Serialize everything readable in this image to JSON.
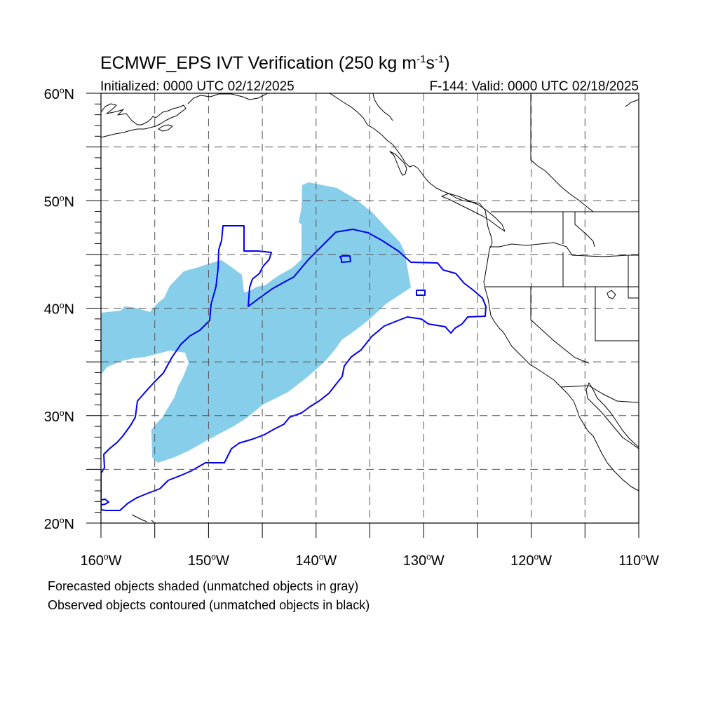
{
  "title": {
    "main": "ECMWF_EPS IVT Verification (250 kg m",
    "exp1": "-1",
    "mid": "s",
    "exp2": "-1",
    "end": ")"
  },
  "subtitle": {
    "left": "Initialized: 0000 UTC 02/12/2025",
    "right": "F-144: Valid: 0000 UTC 02/18/2025"
  },
  "map": {
    "projection": "cylindrical equidistant",
    "lon_range": [
      -160,
      -110
    ],
    "lat_range": [
      20,
      60
    ],
    "grid_lons": [
      -155,
      -150,
      -145,
      -140,
      -135,
      -130,
      -125,
      -120,
      -115
    ],
    "grid_lats": [
      25,
      30,
      35,
      40,
      45,
      50,
      55
    ],
    "lat_labels": [
      {
        "lat": 60,
        "deg": "60",
        "hemi": "N"
      },
      {
        "lat": 50,
        "deg": "50",
        "hemi": "N"
      },
      {
        "lat": 40,
        "deg": "40",
        "hemi": "N"
      },
      {
        "lat": 30,
        "deg": "30",
        "hemi": "N"
      },
      {
        "lat": 20,
        "deg": "20",
        "hemi": "N"
      }
    ],
    "lon_labels": [
      {
        "lon": -160,
        "deg": "160",
        "hemi": "W"
      },
      {
        "lon": -150,
        "deg": "150",
        "hemi": "W"
      },
      {
        "lon": -140,
        "deg": "140",
        "hemi": "W"
      },
      {
        "lon": -130,
        "deg": "130",
        "hemi": "W"
      },
      {
        "lon": -120,
        "deg": "120",
        "hemi": "W"
      },
      {
        "lon": -110,
        "deg": "110",
        "hemi": "W"
      }
    ],
    "forecast_color": "#87ceea",
    "observed_color": "#0000ee"
  },
  "footer": {
    "line1": "Forecasted objects shaded (unmatched objects in gray)",
    "line2": "Observed objects contoured (unmatched objects in black)"
  }
}
